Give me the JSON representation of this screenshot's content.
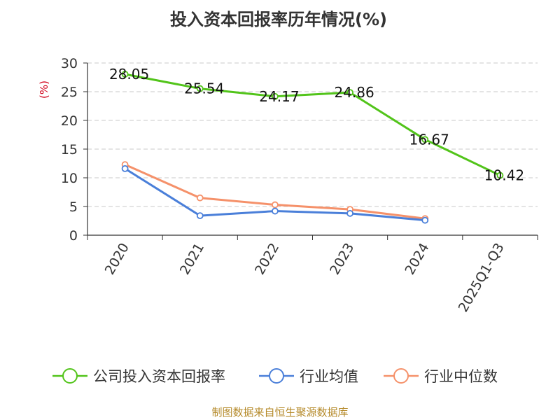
{
  "chart_data": {
    "type": "line",
    "title": "投入资本回报率历年情况(%)",
    "ylabel": "(%)",
    "categories": [
      "2020",
      "2021",
      "2022",
      "2023",
      "2024",
      "2025Q1-Q3"
    ],
    "ylim": [
      0,
      30
    ],
    "yticks": [
      "0",
      "5",
      "10",
      "15",
      "20",
      "25",
      "30"
    ],
    "grid": true,
    "legend_position": "bottom",
    "series": [
      {
        "name": "公司投入资本回报率",
        "color": "#52c41a",
        "values": [
          28.05,
          25.54,
          24.17,
          24.86,
          16.67,
          10.42
        ],
        "labels": [
          "28.05",
          "25.54",
          "24.17",
          "24.86",
          "16.67",
          "10.42"
        ]
      },
      {
        "name": "行业均值",
        "color": "#4a7fd9",
        "values": [
          11.6,
          3.4,
          4.2,
          3.8,
          2.6,
          null
        ]
      },
      {
        "name": "行业中位数",
        "color": "#f5916a",
        "values": [
          12.3,
          6.5,
          5.3,
          4.5,
          2.9,
          null
        ]
      }
    ]
  },
  "source": "制图数据来自恒生聚源数据库"
}
